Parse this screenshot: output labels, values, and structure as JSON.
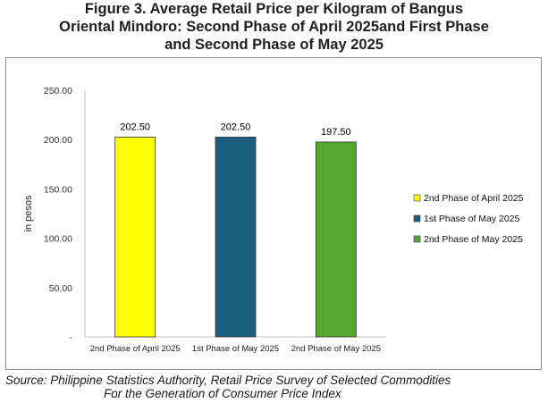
{
  "title": {
    "line1": "Figure 3. Average Retail Price per Kilogram of Bangus",
    "line2": "Oriental Mindoro: Second Phase of April 2025and First Phase",
    "line3": "and Second Phase of May 2025"
  },
  "source": {
    "line1": "Source: Philippine Statistics Authority, Retail Price Survey of Selected Commodities",
    "line2": "For the Generation of Consumer Price Index"
  },
  "chart_data": {
    "type": "bar",
    "categories": [
      "2nd Phase of April 2025",
      "1st Phase of May 2025",
      "2nd Phase of May 2025"
    ],
    "values": [
      202.5,
      202.5,
      197.5
    ],
    "data_labels": [
      "202.50",
      "202.50",
      "197.50"
    ],
    "colors": [
      "#ffff00",
      "#1a5e80",
      "#54a832"
    ],
    "ylabel": "in pesos",
    "ylim": [
      0,
      250
    ],
    "yticks": [
      {
        "value": 0,
        "label": "-"
      },
      {
        "value": 50,
        "label": "50.00"
      },
      {
        "value": 100,
        "label": "100.00"
      },
      {
        "value": 150,
        "label": "150.00"
      },
      {
        "value": 200,
        "label": "200.00"
      },
      {
        "value": 250,
        "label": "250.00"
      }
    ],
    "grid": false,
    "legend": {
      "placement": "right",
      "entries": [
        "2nd Phase of April 2025",
        "1st Phase of May 2025",
        "2nd Phase of May 2025"
      ]
    }
  }
}
